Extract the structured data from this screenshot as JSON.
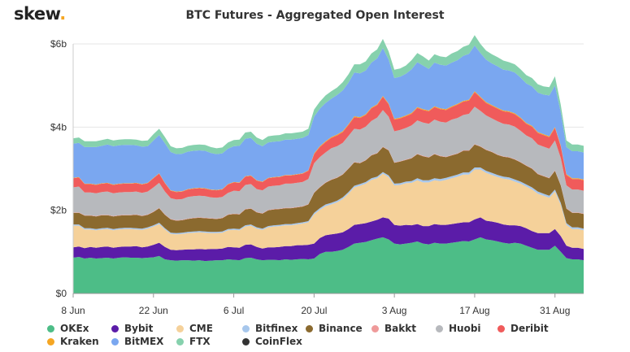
{
  "header": {
    "logo_text": "skew",
    "logo_dot": ".",
    "title": "BTC Futures - Aggregated Open Interest"
  },
  "chart_data": {
    "type": "area",
    "stacked": true,
    "title": "BTC Futures - Aggregated Open Interest",
    "ylim": [
      0,
      6
    ],
    "y_unit": "billion USD",
    "y_ticks": [
      "$0",
      "$2b",
      "$4b",
      "$6b"
    ],
    "y_tick_values": [
      0,
      2,
      4,
      6
    ],
    "x_ticks": [
      "8 Jun",
      "22 Jun",
      "6 Jul",
      "20 Jul",
      "3 Aug",
      "17 Aug",
      "31 Aug"
    ],
    "x_tick_days": [
      0,
      14,
      28,
      42,
      56,
      70,
      84
    ],
    "x_days": [
      0,
      1,
      2,
      3,
      4,
      5,
      6,
      7,
      8,
      9,
      10,
      11,
      12,
      13,
      14,
      15,
      16,
      17,
      18,
      19,
      20,
      21,
      22,
      23,
      24,
      25,
      26,
      27,
      28,
      29,
      30,
      31,
      32,
      33,
      34,
      35,
      36,
      37,
      38,
      39,
      40,
      41,
      42,
      43,
      44,
      45,
      46,
      47,
      48,
      49,
      50,
      51,
      52,
      53,
      54,
      55,
      56,
      57,
      58,
      59,
      60,
      61,
      62,
      63,
      64,
      65,
      66,
      67,
      68,
      69,
      70,
      71,
      72,
      73,
      74,
      75,
      76,
      77,
      78,
      79,
      80,
      81,
      82,
      83,
      84,
      85,
      86,
      87,
      88,
      89
    ],
    "grid": true,
    "legend_position": "bottom",
    "series": [
      {
        "name": "OKEx",
        "color": "#4dbd87",
        "values": [
          0.86,
          0.88,
          0.84,
          0.86,
          0.84,
          0.85,
          0.86,
          0.84,
          0.86,
          0.87,
          0.86,
          0.86,
          0.85,
          0.86,
          0.87,
          0.9,
          0.82,
          0.8,
          0.79,
          0.8,
          0.8,
          0.79,
          0.8,
          0.78,
          0.79,
          0.8,
          0.8,
          0.82,
          0.81,
          0.8,
          0.85,
          0.86,
          0.82,
          0.8,
          0.81,
          0.81,
          0.8,
          0.82,
          0.81,
          0.82,
          0.83,
          0.82,
          0.84,
          0.95,
          1.0,
          1.0,
          1.02,
          1.05,
          1.12,
          1.2,
          1.22,
          1.24,
          1.28,
          1.32,
          1.35,
          1.3,
          1.2,
          1.18,
          1.2,
          1.22,
          1.25,
          1.2,
          1.18,
          1.22,
          1.2,
          1.2,
          1.22,
          1.24,
          1.26,
          1.25,
          1.3,
          1.35,
          1.3,
          1.28,
          1.25,
          1.22,
          1.2,
          1.22,
          1.2,
          1.15,
          1.1,
          1.05,
          1.05,
          1.05,
          1.15,
          1.0,
          0.85,
          0.82,
          0.82,
          0.8
        ]
      },
      {
        "name": "Bybit",
        "color": "#5b1ca8",
        "values": [
          0.25,
          0.25,
          0.25,
          0.26,
          0.26,
          0.27,
          0.27,
          0.26,
          0.26,
          0.26,
          0.27,
          0.28,
          0.26,
          0.27,
          0.3,
          0.32,
          0.3,
          0.25,
          0.25,
          0.25,
          0.26,
          0.27,
          0.27,
          0.28,
          0.28,
          0.27,
          0.28,
          0.3,
          0.3,
          0.3,
          0.32,
          0.32,
          0.3,
          0.28,
          0.3,
          0.3,
          0.32,
          0.32,
          0.33,
          0.34,
          0.33,
          0.35,
          0.36,
          0.38,
          0.4,
          0.42,
          0.42,
          0.42,
          0.43,
          0.45,
          0.45,
          0.45,
          0.45,
          0.45,
          0.48,
          0.5,
          0.45,
          0.45,
          0.45,
          0.42,
          0.42,
          0.42,
          0.44,
          0.45,
          0.45,
          0.45,
          0.45,
          0.45,
          0.45,
          0.46,
          0.48,
          0.48,
          0.45,
          0.45,
          0.45,
          0.44,
          0.44,
          0.42,
          0.42,
          0.42,
          0.4,
          0.4,
          0.4,
          0.4,
          0.4,
          0.38,
          0.3,
          0.28,
          0.28,
          0.27
        ]
      },
      {
        "name": "CME",
        "color": "#f5d19a",
        "values": [
          0.52,
          0.5,
          0.45,
          0.42,
          0.42,
          0.42,
          0.42,
          0.42,
          0.42,
          0.42,
          0.42,
          0.4,
          0.42,
          0.43,
          0.44,
          0.45,
          0.42,
          0.38,
          0.38,
          0.38,
          0.39,
          0.4,
          0.4,
          0.4,
          0.38,
          0.38,
          0.38,
          0.4,
          0.42,
          0.42,
          0.44,
          0.45,
          0.44,
          0.45,
          0.48,
          0.5,
          0.5,
          0.5,
          0.5,
          0.5,
          0.52,
          0.54,
          0.7,
          0.68,
          0.7,
          0.72,
          0.75,
          0.8,
          0.85,
          0.9,
          0.92,
          0.95,
          1.0,
          1.0,
          1.05,
          1.0,
          0.95,
          0.98,
          1.0,
          1.02,
          1.05,
          1.05,
          1.05,
          1.05,
          1.05,
          1.08,
          1.1,
          1.12,
          1.15,
          1.15,
          1.2,
          1.15,
          1.15,
          1.12,
          1.1,
          1.1,
          1.1,
          1.05,
          1.02,
          1.0,
          1.0,
          0.95,
          0.9,
          0.85,
          0.9,
          0.75,
          0.5,
          0.45,
          0.45,
          0.45
        ]
      },
      {
        "name": "Bitfinex",
        "color": "#a7c7ec",
        "values": [
          0.03,
          0.03,
          0.03,
          0.03,
          0.03,
          0.03,
          0.03,
          0.03,
          0.03,
          0.03,
          0.03,
          0.03,
          0.03,
          0.03,
          0.03,
          0.03,
          0.03,
          0.03,
          0.03,
          0.03,
          0.03,
          0.03,
          0.03,
          0.03,
          0.03,
          0.03,
          0.03,
          0.03,
          0.03,
          0.03,
          0.03,
          0.03,
          0.03,
          0.03,
          0.03,
          0.03,
          0.03,
          0.03,
          0.03,
          0.03,
          0.03,
          0.03,
          0.04,
          0.04,
          0.04,
          0.04,
          0.04,
          0.04,
          0.04,
          0.04,
          0.04,
          0.04,
          0.04,
          0.04,
          0.04,
          0.04,
          0.04,
          0.04,
          0.04,
          0.04,
          0.05,
          0.05,
          0.05,
          0.05,
          0.05,
          0.05,
          0.05,
          0.05,
          0.05,
          0.05,
          0.05,
          0.05,
          0.05,
          0.05,
          0.05,
          0.05,
          0.05,
          0.05,
          0.05,
          0.05,
          0.05,
          0.05,
          0.05,
          0.05,
          0.05,
          0.05,
          0.04,
          0.04,
          0.04,
          0.04
        ]
      },
      {
        "name": "Binance",
        "color": "#8b6a2f",
        "values": [
          0.28,
          0.28,
          0.3,
          0.3,
          0.3,
          0.31,
          0.3,
          0.3,
          0.3,
          0.3,
          0.3,
          0.32,
          0.3,
          0.3,
          0.32,
          0.35,
          0.32,
          0.32,
          0.3,
          0.3,
          0.31,
          0.32,
          0.32,
          0.32,
          0.32,
          0.31,
          0.32,
          0.34,
          0.35,
          0.35,
          0.38,
          0.38,
          0.36,
          0.36,
          0.38,
          0.38,
          0.38,
          0.38,
          0.38,
          0.38,
          0.38,
          0.4,
          0.48,
          0.5,
          0.52,
          0.55,
          0.55,
          0.55,
          0.56,
          0.56,
          0.5,
          0.52,
          0.55,
          0.56,
          0.6,
          0.6,
          0.5,
          0.52,
          0.52,
          0.55,
          0.58,
          0.58,
          0.55,
          0.58,
          0.55,
          0.5,
          0.5,
          0.5,
          0.52,
          0.52,
          0.55,
          0.5,
          0.5,
          0.5,
          0.48,
          0.48,
          0.48,
          0.48,
          0.46,
          0.45,
          0.45,
          0.42,
          0.42,
          0.42,
          0.45,
          0.42,
          0.35,
          0.35,
          0.35,
          0.35
        ]
      },
      {
        "name": "Bakkt",
        "color": "#ef9a9a",
        "values": [
          0.01,
          0.01,
          0.01,
          0.01,
          0.01,
          0.01,
          0.01,
          0.01,
          0.01,
          0.01,
          0.01,
          0.01,
          0.01,
          0.01,
          0.01,
          0.01,
          0.01,
          0.01,
          0.01,
          0.01,
          0.01,
          0.01,
          0.01,
          0.01,
          0.01,
          0.01,
          0.01,
          0.01,
          0.01,
          0.01,
          0.01,
          0.01,
          0.01,
          0.01,
          0.01,
          0.01,
          0.01,
          0.01,
          0.01,
          0.01,
          0.01,
          0.01,
          0.01,
          0.01,
          0.01,
          0.01,
          0.01,
          0.01,
          0.01,
          0.01,
          0.01,
          0.01,
          0.01,
          0.01,
          0.01,
          0.01,
          0.01,
          0.01,
          0.01,
          0.01,
          0.01,
          0.01,
          0.01,
          0.01,
          0.01,
          0.01,
          0.01,
          0.01,
          0.01,
          0.01,
          0.01,
          0.01,
          0.01,
          0.01,
          0.01,
          0.01,
          0.01,
          0.01,
          0.01,
          0.01,
          0.01,
          0.01,
          0.01,
          0.01,
          0.01,
          0.01,
          0.01,
          0.01,
          0.01,
          0.01
        ]
      },
      {
        "name": "Huobi",
        "color": "#b7b9bd",
        "values": [
          0.6,
          0.62,
          0.55,
          0.55,
          0.55,
          0.55,
          0.56,
          0.55,
          0.55,
          0.55,
          0.55,
          0.55,
          0.55,
          0.55,
          0.58,
          0.6,
          0.55,
          0.5,
          0.5,
          0.5,
          0.52,
          0.52,
          0.52,
          0.52,
          0.5,
          0.5,
          0.5,
          0.52,
          0.55,
          0.55,
          0.58,
          0.58,
          0.55,
          0.55,
          0.56,
          0.56,
          0.56,
          0.58,
          0.58,
          0.58,
          0.58,
          0.6,
          0.7,
          0.72,
          0.72,
          0.75,
          0.75,
          0.75,
          0.78,
          0.8,
          0.8,
          0.8,
          0.82,
          0.85,
          0.88,
          0.8,
          0.75,
          0.75,
          0.76,
          0.78,
          0.8,
          0.8,
          0.8,
          0.82,
          0.82,
          0.82,
          0.85,
          0.85,
          0.85,
          0.88,
          0.9,
          0.85,
          0.82,
          0.8,
          0.8,
          0.78,
          0.78,
          0.78,
          0.75,
          0.72,
          0.72,
          0.7,
          0.7,
          0.7,
          0.72,
          0.65,
          0.55,
          0.55,
          0.55,
          0.55
        ]
      },
      {
        "name": "Deribit",
        "color": "#f05b5b",
        "values": [
          0.22,
          0.22,
          0.2,
          0.2,
          0.2,
          0.2,
          0.2,
          0.2,
          0.2,
          0.2,
          0.2,
          0.2,
          0.2,
          0.2,
          0.22,
          0.22,
          0.2,
          0.18,
          0.18,
          0.18,
          0.18,
          0.18,
          0.18,
          0.18,
          0.18,
          0.18,
          0.18,
          0.2,
          0.2,
          0.2,
          0.2,
          0.2,
          0.2,
          0.2,
          0.2,
          0.2,
          0.2,
          0.2,
          0.2,
          0.2,
          0.2,
          0.2,
          0.22,
          0.24,
          0.25,
          0.25,
          0.26,
          0.26,
          0.26,
          0.28,
          0.28,
          0.28,
          0.3,
          0.3,
          0.32,
          0.3,
          0.28,
          0.28,
          0.28,
          0.28,
          0.3,
          0.3,
          0.3,
          0.3,
          0.3,
          0.3,
          0.3,
          0.32,
          0.32,
          0.32,
          0.35,
          0.32,
          0.3,
          0.3,
          0.3,
          0.3,
          0.3,
          0.3,
          0.3,
          0.28,
          0.28,
          0.28,
          0.28,
          0.28,
          0.3,
          0.28,
          0.25,
          0.25,
          0.25,
          0.25
        ]
      },
      {
        "name": "Kraken",
        "color": "#f5a623",
        "values": [
          0.01,
          0.01,
          0.01,
          0.01,
          0.01,
          0.01,
          0.01,
          0.01,
          0.01,
          0.01,
          0.01,
          0.01,
          0.01,
          0.01,
          0.01,
          0.01,
          0.01,
          0.01,
          0.01,
          0.01,
          0.01,
          0.01,
          0.01,
          0.01,
          0.01,
          0.01,
          0.01,
          0.01,
          0.01,
          0.01,
          0.01,
          0.01,
          0.01,
          0.01,
          0.01,
          0.01,
          0.01,
          0.01,
          0.01,
          0.01,
          0.01,
          0.01,
          0.02,
          0.02,
          0.02,
          0.02,
          0.02,
          0.02,
          0.02,
          0.02,
          0.02,
          0.02,
          0.02,
          0.02,
          0.02,
          0.02,
          0.02,
          0.02,
          0.02,
          0.02,
          0.02,
          0.02,
          0.02,
          0.02,
          0.02,
          0.02,
          0.02,
          0.02,
          0.02,
          0.02,
          0.02,
          0.02,
          0.02,
          0.02,
          0.02,
          0.02,
          0.02,
          0.02,
          0.02,
          0.02,
          0.02,
          0.02,
          0.02,
          0.02,
          0.02,
          0.02,
          0.02,
          0.02,
          0.02,
          0.02
        ]
      },
      {
        "name": "BitMEX",
        "color": "#7aa7f0",
        "values": [
          0.82,
          0.82,
          0.88,
          0.88,
          0.9,
          0.9,
          0.92,
          0.92,
          0.92,
          0.92,
          0.92,
          0.9,
          0.9,
          0.88,
          0.9,
          0.92,
          0.95,
          0.92,
          0.9,
          0.9,
          0.9,
          0.9,
          0.9,
          0.9,
          0.88,
          0.86,
          0.86,
          0.85,
          0.86,
          0.88,
          0.9,
          0.9,
          0.88,
          0.85,
          0.85,
          0.85,
          0.85,
          0.85,
          0.85,
          0.85,
          0.85,
          0.85,
          0.88,
          0.9,
          0.92,
          0.92,
          0.95,
          0.98,
          1.0,
          1.05,
          1.05,
          1.05,
          1.08,
          1.1,
          1.15,
          1.05,
          0.98,
          0.98,
          1.0,
          1.05,
          1.08,
          1.05,
          1.0,
          1.05,
          1.05,
          1.05,
          1.05,
          1.05,
          1.08,
          1.1,
          1.1,
          1.05,
          1.02,
          1.0,
          1.0,
          0.98,
          0.98,
          0.98,
          0.96,
          0.95,
          0.95,
          0.95,
          0.95,
          0.98,
          1.0,
          0.8,
          0.65,
          0.65,
          0.65,
          0.65
        ]
      },
      {
        "name": "FTX",
        "color": "#86d1ad",
        "values": [
          0.13,
          0.13,
          0.14,
          0.14,
          0.14,
          0.14,
          0.14,
          0.14,
          0.14,
          0.14,
          0.14,
          0.14,
          0.14,
          0.14,
          0.15,
          0.15,
          0.15,
          0.14,
          0.14,
          0.14,
          0.14,
          0.14,
          0.14,
          0.14,
          0.14,
          0.14,
          0.14,
          0.15,
          0.15,
          0.15,
          0.15,
          0.15,
          0.15,
          0.15,
          0.15,
          0.15,
          0.15,
          0.15,
          0.15,
          0.15,
          0.15,
          0.15,
          0.17,
          0.17,
          0.18,
          0.18,
          0.18,
          0.2,
          0.2,
          0.2,
          0.22,
          0.22,
          0.22,
          0.22,
          0.22,
          0.2,
          0.2,
          0.2,
          0.2,
          0.22,
          0.22,
          0.22,
          0.2,
          0.2,
          0.2,
          0.2,
          0.22,
          0.22,
          0.22,
          0.22,
          0.25,
          0.22,
          0.22,
          0.22,
          0.22,
          0.22,
          0.2,
          0.2,
          0.2,
          0.2,
          0.2,
          0.2,
          0.2,
          0.2,
          0.22,
          0.18,
          0.16,
          0.16,
          0.16,
          0.16
        ]
      },
      {
        "name": "CoinFlex",
        "color": "#333333",
        "values": [
          0,
          0,
          0,
          0,
          0,
          0,
          0,
          0,
          0,
          0,
          0,
          0,
          0,
          0,
          0,
          0,
          0,
          0,
          0,
          0,
          0,
          0,
          0,
          0,
          0,
          0,
          0,
          0,
          0,
          0,
          0,
          0,
          0,
          0,
          0,
          0,
          0,
          0,
          0,
          0,
          0,
          0,
          0,
          0,
          0,
          0,
          0,
          0,
          0,
          0,
          0,
          0,
          0,
          0,
          0,
          0,
          0,
          0,
          0,
          0,
          0,
          0,
          0,
          0,
          0,
          0,
          0,
          0,
          0,
          0,
          0,
          0,
          0,
          0,
          0,
          0,
          0,
          0,
          0,
          0,
          0,
          0,
          0,
          0,
          0,
          0,
          0,
          0,
          0,
          0
        ]
      }
    ]
  }
}
